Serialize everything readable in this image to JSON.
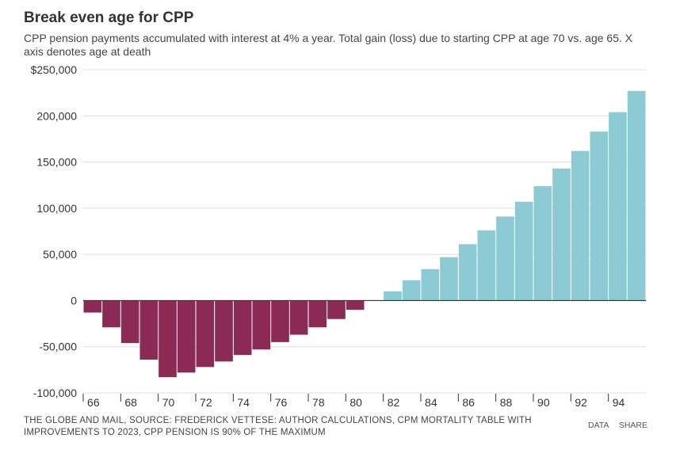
{
  "title": "Break even age for CPP",
  "subtitle": "CPP pension payments accumulated with interest at 4% a year. Total gain (loss) due to starting CPP at age 70 vs. age 65. X axis denotes age at death",
  "footer": {
    "source": "THE GLOBE AND MAIL, SOURCE: FREDERICK VETTESE: AUTHOR CALCULATIONS, CPM MORTALITY TABLE WITH IMPROVEMENTS TO 2023, CPP PENSION IS 90% OF THE MAXIMUM",
    "data_label": "DATA",
    "share_label": "SHARE"
  },
  "colors": {
    "negative": "#8b2a55",
    "positive": "#8ccbd4",
    "grid": "#dddddd",
    "axis": "#333333"
  },
  "chart_data": {
    "type": "bar",
    "title": "Break even age for CPP",
    "xlabel": "",
    "ylabel": "",
    "ylim": [
      -100000,
      250000
    ],
    "yticks": [
      250000,
      200000,
      150000,
      100000,
      50000,
      0,
      -50000,
      -100000
    ],
    "ytick_labels": [
      "$250,000",
      "200,000",
      "150,000",
      "100,000",
      "50,000",
      "0",
      "-50,000",
      "-100,000"
    ],
    "xtick_labels": [
      "66",
      "68",
      "70",
      "72",
      "74",
      "76",
      "78",
      "80",
      "82",
      "84",
      "86",
      "88",
      "90",
      "92",
      "94"
    ],
    "categories": [
      66,
      67,
      68,
      69,
      70,
      71,
      72,
      73,
      74,
      75,
      76,
      77,
      78,
      79,
      80,
      81,
      82,
      83,
      84,
      85,
      86,
      87,
      88,
      89,
      90,
      91,
      92,
      93,
      94,
      95
    ],
    "values": [
      -13000,
      -29000,
      -46000,
      -64000,
      -83000,
      -78000,
      -72000,
      -66000,
      -59000,
      -53000,
      -45000,
      -37000,
      -29000,
      -20000,
      -10000,
      0,
      10000,
      22000,
      34000,
      47000,
      61000,
      76000,
      91000,
      107000,
      124000,
      143000,
      162000,
      183000,
      204000,
      227000
    ],
    "grid": true
  }
}
